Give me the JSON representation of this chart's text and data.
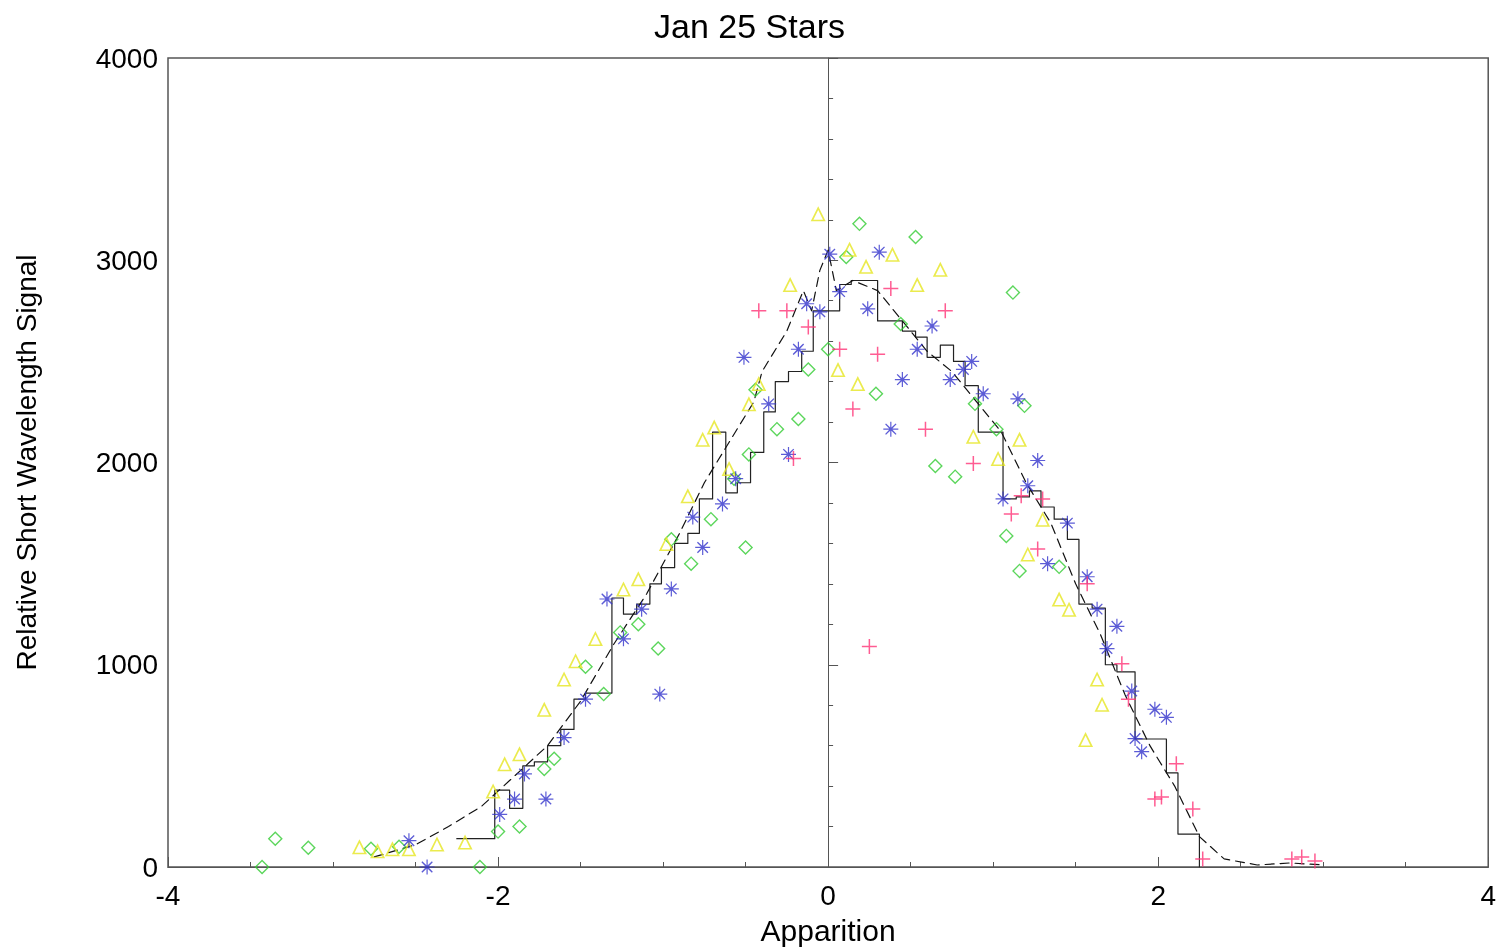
{
  "chart_data": {
    "type": "scatter",
    "title": "Jan 25 Stars",
    "xlabel": "Apparition",
    "ylabel": "Relative Short Wavelength Signal",
    "xlim": [
      -4,
      4
    ],
    "xticks": [
      -4,
      -2,
      0,
      2,
      4
    ],
    "ylim": [
      0,
      4000
    ],
    "yticks": [
      0,
      1000,
      2000,
      3000,
      4000
    ],
    "series": [
      {
        "marker": "diamond",
        "color": "#33cc33",
        "x": [
          -3.43,
          -3.35,
          -3.15,
          -2.77,
          -2.6,
          -2.11,
          -2.0,
          -1.87,
          -1.72,
          -1.66,
          -1.47,
          -1.36,
          -1.26,
          -1.15,
          -1.03,
          -0.95,
          -0.83,
          -0.71,
          -0.57,
          -0.5,
          -0.48,
          -0.44,
          -0.31,
          -0.18,
          -0.12,
          0.0,
          0.11,
          0.19,
          0.29,
          0.44,
          0.53,
          0.65,
          0.77,
          0.89,
          1.02,
          1.08,
          1.12,
          1.16,
          1.19,
          1.4
        ],
        "values": [
          0,
          140,
          95,
          90,
          100,
          0,
          175,
          200,
          485,
          535,
          990,
          855,
          1160,
          1200,
          1080,
          1620,
          1500,
          1720,
          1920,
          1580,
          2040,
          2360,
          2165,
          2215,
          2460,
          2560,
          3016,
          3180,
          2340,
          2685,
          3115,
          1983,
          1930,
          2290,
          2165,
          1637,
          2840,
          1464,
          2280,
          1484
        ]
      },
      {
        "marker": "triangle",
        "color": "#e6e622",
        "x": [
          -2.84,
          -2.73,
          -2.64,
          -2.54,
          -2.37,
          -2.2,
          -2.03,
          -1.96,
          -1.87,
          -1.72,
          -1.6,
          -1.53,
          -1.41,
          -1.24,
          -1.15,
          -0.98,
          -0.85,
          -0.76,
          -0.69,
          -0.6,
          -0.48,
          -0.42,
          -0.23,
          -0.06,
          0.06,
          0.13,
          0.18,
          0.23,
          0.39,
          0.54,
          0.68,
          0.88,
          1.03,
          1.16,
          1.21,
          1.3,
          1.4,
          1.46,
          1.56,
          1.63,
          1.66
        ],
        "values": [
          100,
          80,
          90,
          90,
          114,
          124,
          376,
          510,
          560,
          780,
          930,
          1020,
          1130,
          1375,
          1425,
          1600,
          1835,
          2115,
          2175,
          1970,
          2290,
          2390,
          2880,
          3230,
          2460,
          3055,
          2390,
          2970,
          3030,
          2880,
          2955,
          2130,
          2020,
          2115,
          1548,
          1720,
          1325,
          1275,
          630,
          930,
          805
        ]
      },
      {
        "marker": "star",
        "color": "#3333cc",
        "x": [
          -2.54,
          -2.43,
          -1.99,
          -1.9,
          -1.84,
          -1.71,
          -1.6,
          -1.47,
          -1.34,
          -1.24,
          -1.13,
          -1.02,
          -0.95,
          -0.82,
          -0.76,
          -0.64,
          -0.56,
          -0.51,
          -0.36,
          -0.24,
          -0.18,
          -0.13,
          -0.05,
          0.01,
          0.07,
          0.24,
          0.31,
          0.38,
          0.45,
          0.54,
          0.63,
          0.74,
          0.82,
          0.87,
          0.94,
          1.06,
          1.15,
          1.21,
          1.27,
          1.33,
          1.45,
          1.57,
          1.63,
          1.69,
          1.75,
          1.84,
          1.86,
          1.9,
          1.98,
          2.05
        ],
        "values": [
          130,
          0,
          260,
          336,
          460,
          336,
          640,
          830,
          1325,
          1128,
          1275,
          855,
          1375,
          1730,
          1580,
          1795,
          1920,
          2520,
          2290,
          2040,
          2560,
          2785,
          2745,
          3030,
          2845,
          2760,
          3040,
          2165,
          2410,
          2560,
          2675,
          2410,
          2460,
          2500,
          2340,
          1820,
          2315,
          1885,
          2010,
          1500,
          1700,
          1435,
          1275,
          1080,
          1190,
          870,
          635,
          570,
          780,
          740
        ]
      },
      {
        "marker": "cross",
        "color": "#ff3377",
        "x": [
          -0.42,
          -0.25,
          -0.21,
          -0.12,
          0.07,
          0.15,
          0.25,
          0.3,
          0.38,
          0.59,
          0.71,
          0.88,
          1.11,
          1.17,
          1.27,
          1.3,
          1.57,
          1.78,
          1.82,
          1.98,
          2.02,
          2.11,
          2.21,
          2.27,
          2.81,
          2.87,
          2.95
        ],
        "values": [
          2750,
          2750,
          2020,
          2670,
          2560,
          2265,
          1090,
          2535,
          2860,
          2165,
          2750,
          1995,
          1745,
          1835,
          1572,
          1820,
          1400,
          1005,
          830,
          336,
          346,
          510,
          287,
          40,
          40,
          50,
          30
        ]
      },
      {
        "type": "step",
        "marker": "none",
        "line_style": "solid",
        "color": "#222222",
        "x": [
          -2.25,
          -2.17,
          -2.02,
          -1.93,
          -1.85,
          -1.78,
          -1.7,
          -1.62,
          -1.54,
          -1.47,
          -1.39,
          -1.31,
          -1.24,
          -1.16,
          -1.08,
          -1.01,
          -0.93,
          -0.85,
          -0.78,
          -0.7,
          -0.62,
          -0.55,
          -0.47,
          -0.39,
          -0.32,
          -0.24,
          -0.16,
          -0.09,
          -0.01,
          0.07,
          0.14,
          0.22,
          0.3,
          0.37,
          0.45,
          0.53,
          0.6,
          0.68,
          0.76,
          0.83,
          0.91,
          0.99,
          1.06,
          1.14,
          1.22,
          1.29,
          1.37,
          1.45,
          1.52,
          1.6,
          1.68,
          1.75,
          1.86,
          2.05,
          2.12,
          2.25
        ],
        "values": [
          140,
          140,
          380,
          290,
          500,
          520,
          600,
          680,
          830,
          860,
          860,
          1330,
          1250,
          1300,
          1400,
          1480,
          1600,
          1650,
          1820,
          2150,
          1850,
          1900,
          2050,
          2250,
          2400,
          2450,
          2550,
          2750,
          2750,
          2880,
          2900,
          2900,
          2700,
          2700,
          2650,
          2620,
          2520,
          2580,
          2500,
          2380,
          2150,
          2150,
          1820,
          1830,
          1860,
          1780,
          1720,
          1620,
          1300,
          1280,
          1000,
          965,
          633,
          465,
          163,
          0
        ]
      },
      {
        "type": "line",
        "marker": "none",
        "line_style": "dashed",
        "color": "#111111",
        "x": [
          -2.75,
          -2.5,
          -2.3,
          -2.1,
          -1.9,
          -1.7,
          -1.5,
          -1.3,
          -1.1,
          -0.9,
          -0.75,
          -0.6,
          -0.45,
          -0.4,
          -0.25,
          -0.15,
          -0.1,
          -0.05,
          0.0,
          0.05,
          0.15,
          0.3,
          0.45,
          0.6,
          0.75,
          0.9,
          1.05,
          1.2,
          1.35,
          1.5,
          1.65,
          1.8,
          1.95,
          2.1,
          2.25,
          2.4,
          2.6,
          2.8,
          3.0
        ],
        "values": [
          50,
          110,
          200,
          300,
          450,
          600,
          820,
          1100,
          1350,
          1650,
          1900,
          2100,
          2300,
          2450,
          2650,
          2850,
          2750,
          2950,
          3050,
          2850,
          2900,
          2850,
          2700,
          2550,
          2450,
          2300,
          2150,
          1900,
          1700,
          1400,
          1150,
          850,
          600,
          400,
          150,
          40,
          10,
          20,
          10
        ]
      }
    ]
  }
}
